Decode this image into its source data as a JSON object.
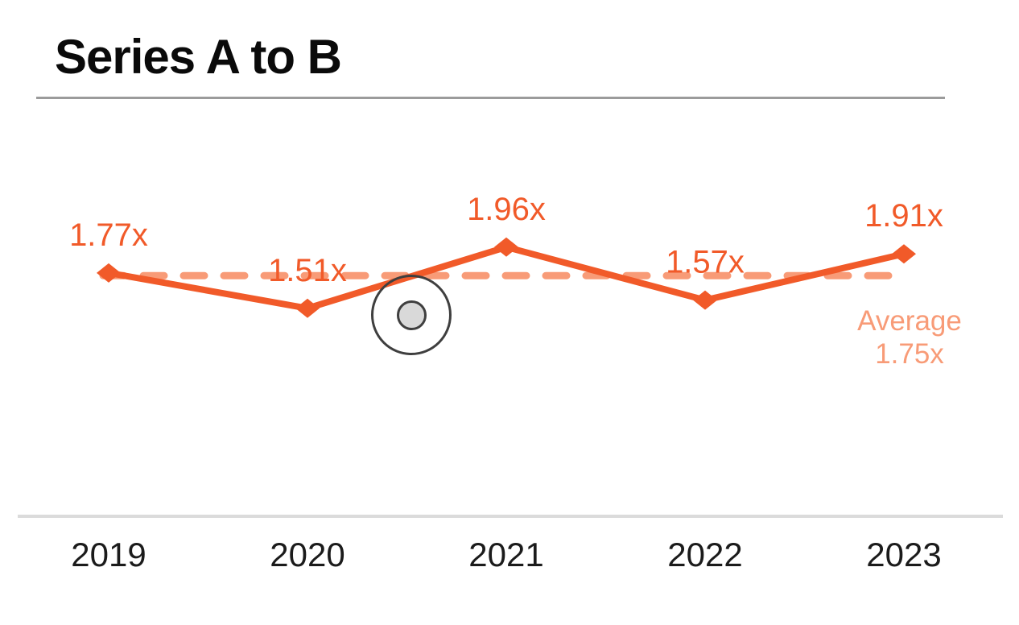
{
  "header": {
    "title": "Series A to B"
  },
  "colors": {
    "series_line": "#F15A29",
    "average_line": "#F89B77",
    "title_text": "#0A0A0A",
    "year_text": "#1B1B1B",
    "title_rule": "#9B9B9B",
    "axis_line": "#DBDBDB",
    "click_indicator_fill": "#D9D9D9",
    "click_indicator_stroke": "#3F3F3F"
  },
  "chart_data": {
    "type": "line",
    "title": "Series A to B",
    "categories": [
      "2019",
      "2020",
      "2021",
      "2022",
      "2023"
    ],
    "series": [
      {
        "name": "Series A to B",
        "values": [
          1.77,
          1.51,
          1.96,
          1.57,
          1.91
        ],
        "point_labels": [
          "1.77x",
          "1.51x",
          "1.96x",
          "1.57x",
          "1.91x"
        ],
        "color": "#F15A29",
        "marker": "diamond"
      }
    ],
    "average_line": {
      "value": 1.75,
      "style": "dashed",
      "color": "#F89B77",
      "label": [
        "Average",
        "1.75x"
      ]
    },
    "xlabel": "",
    "ylabel": "",
    "ylim": [
      1.3,
      2.1
    ],
    "grid": false,
    "legend": "none"
  },
  "overlay": {
    "click_indicator": "click-location-marker"
  }
}
